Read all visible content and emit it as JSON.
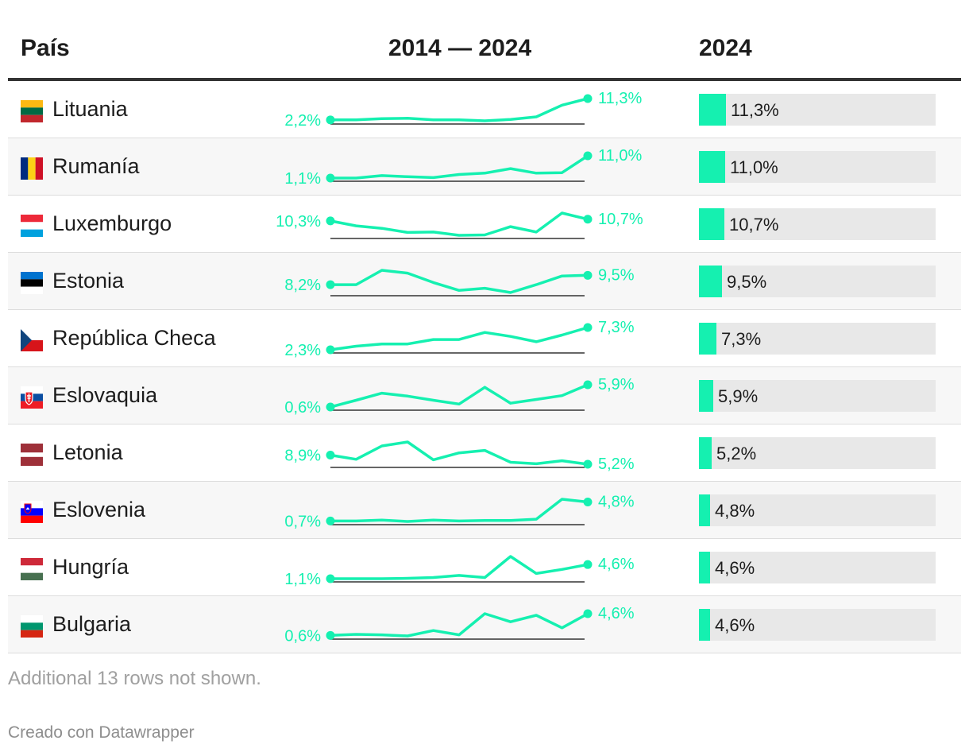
{
  "headers": {
    "country": "País",
    "trend": "2014 — 2024",
    "year": "2024"
  },
  "colors": {
    "accent": "#15f0b0",
    "baseline": "#333333"
  },
  "chart_data": {
    "type": "table",
    "title": "",
    "columns": [
      "País",
      "2014 — 2024",
      "2024"
    ],
    "years": [
      2014,
      2015,
      2016,
      2017,
      2018,
      2019,
      2020,
      2021,
      2022,
      2023,
      2024
    ],
    "rows": [
      {
        "country": "Lituania",
        "flag": "lt",
        "start_label": "2,2%",
        "end_label": "11,3%",
        "value_label": "11,3%",
        "value": 11.3,
        "series": [
          2.2,
          2.2,
          2.7,
          2.9,
          2.2,
          2.2,
          1.8,
          2.4,
          3.5,
          8.5,
          11.3
        ]
      },
      {
        "country": "Rumanía",
        "flag": "ro",
        "start_label": "1,1%",
        "end_label": "11,0%",
        "value_label": "11,0%",
        "value": 11.0,
        "series": [
          1.1,
          1.1,
          2.2,
          1.7,
          1.3,
          2.7,
          3.3,
          5.3,
          3.3,
          3.5,
          11.0
        ]
      },
      {
        "country": "Luxemburgo",
        "flag": "lu",
        "start_label": "10,3%",
        "end_label": "10,7%",
        "value_label": "10,7%",
        "value": 10.7,
        "series": [
          10.3,
          9.1,
          8.5,
          7.5,
          7.6,
          6.8,
          6.9,
          8.9,
          7.6,
          12.2,
          10.7
        ]
      },
      {
        "country": "Estonia",
        "flag": "ee",
        "start_label": "8,2%",
        "end_label": "9,5%",
        "value_label": "9,5%",
        "value": 9.5,
        "series": [
          8.2,
          8.2,
          10.2,
          9.8,
          8.5,
          7.4,
          7.7,
          7.1,
          8.2,
          9.4,
          9.5
        ]
      },
      {
        "country": "República Checa",
        "flag": "cz",
        "start_label": "2,3%",
        "end_label": "7,3%",
        "value_label": "7,3%",
        "value": 7.3,
        "series": [
          2.3,
          3.1,
          3.6,
          3.6,
          4.6,
          4.6,
          6.2,
          5.3,
          4.1,
          5.6,
          7.3
        ]
      },
      {
        "country": "Eslovaquia",
        "flag": "sk",
        "start_label": "0,6%",
        "end_label": "5,9%",
        "value_label": "5,9%",
        "value": 5.9,
        "series": [
          0.6,
          2.2,
          3.9,
          3.2,
          2.2,
          1.3,
          5.3,
          1.5,
          2.4,
          3.3,
          5.9
        ]
      },
      {
        "country": "Letonia",
        "flag": "lv",
        "start_label": "8,9%",
        "end_label": "5,2%",
        "value_label": "5,2%",
        "value": 5.2,
        "series": [
          8.9,
          7.2,
          12.6,
          14.2,
          7.0,
          9.8,
          10.8,
          6.0,
          5.4,
          6.6,
          5.2
        ]
      },
      {
        "country": "Eslovenia",
        "flag": "si",
        "start_label": "0,7%",
        "end_label": "4,8%",
        "value_label": "4,8%",
        "value": 4.8,
        "series": [
          0.7,
          0.7,
          0.9,
          0.6,
          0.9,
          0.7,
          0.8,
          0.8,
          1.1,
          5.4,
          4.8
        ]
      },
      {
        "country": "Hungría",
        "flag": "hu",
        "start_label": "1,1%",
        "end_label": "4,6%",
        "value_label": "4,6%",
        "value": 4.6,
        "series": [
          1.1,
          1.1,
          1.1,
          1.2,
          1.4,
          1.9,
          1.4,
          6.6,
          2.4,
          3.4,
          4.6
        ]
      },
      {
        "country": "Bulgaria",
        "flag": "bg",
        "start_label": "0,6%",
        "end_label": "4,6%",
        "value_label": "4,6%",
        "value": 4.6,
        "series": [
          0.6,
          0.8,
          0.7,
          0.5,
          1.5,
          0.7,
          4.6,
          3.1,
          4.3,
          2.0,
          4.6
        ]
      }
    ],
    "bar_max": 11.3
  },
  "footer": {
    "note": "Additional 13 rows not shown.",
    "credit": "Creado con Datawrapper"
  }
}
